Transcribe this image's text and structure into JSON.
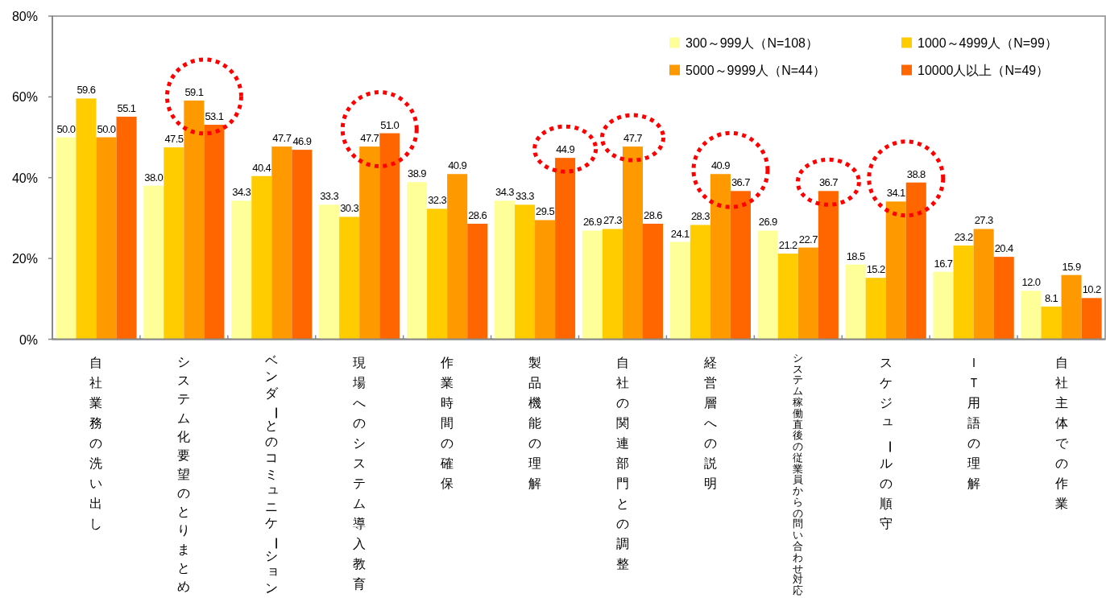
{
  "chart_data": {
    "type": "bar",
    "categories": [
      "自社業務の洗い出し",
      "システム化要望のとりまとめ",
      "ベンダーとのコミュニケーション",
      "現場へのシステム導入教育",
      "作業時間の確保",
      "製品機能の理解",
      "自社の関連部門との調整",
      "経営層への説明",
      "システム稼働直後の従業員からの問い合わせ対応",
      "スケジュールの順守",
      "ＩＴ用語の理解",
      "自社主体での作業"
    ],
    "series": [
      {
        "name": "300～999人（N=108）",
        "color": "#ffff99",
        "values": [
          50.0,
          38.0,
          34.3,
          33.3,
          38.9,
          34.3,
          26.9,
          24.1,
          26.9,
          18.5,
          16.7,
          12.0
        ],
        "value_labels": [
          "50.0",
          "38.0",
          "34.3",
          "33.3",
          "38.9",
          "34.3",
          "26.9",
          "24.1",
          "26.9",
          "18.5",
          "16.7",
          "12.0"
        ]
      },
      {
        "name": "1000～4999人（N=99）",
        "color": "#ffcc00",
        "values": [
          59.6,
          47.5,
          40.4,
          30.3,
          32.3,
          33.3,
          27.3,
          28.3,
          21.2,
          15.2,
          23.2,
          8.1
        ],
        "value_labels": [
          "59.6",
          "47.5",
          "40.4",
          "30.3",
          "32.3",
          "33.3",
          "27.3",
          "28.3",
          "21.2",
          "15.2",
          "23.2",
          "8.1"
        ]
      },
      {
        "name": "5000～9999人（N=44）",
        "color": "#ff9900",
        "values": [
          50.0,
          59.1,
          47.7,
          47.7,
          40.9,
          29.5,
          47.7,
          40.9,
          22.7,
          34.1,
          27.3,
          15.9
        ],
        "value_labels": [
          "50.0",
          "59.1",
          "47.7",
          "47.7",
          "40.9",
          "29.5",
          "47.7",
          "40.9",
          "22.7",
          "34.1",
          "27.3",
          "15.9"
        ]
      },
      {
        "name": "10000人以上（N=49）",
        "color": "#ff6600",
        "values": [
          55.1,
          53.1,
          46.9,
          51.0,
          28.6,
          44.9,
          28.6,
          36.7,
          36.7,
          38.8,
          20.4,
          10.2
        ],
        "value_labels": [
          "55.1",
          "53.1",
          "46.9",
          "51.0",
          "28.6",
          "44.9",
          "28.6",
          "36.7",
          "36.7",
          "38.8",
          "20.4",
          "10.2"
        ]
      }
    ],
    "ylim": [
      0,
      80
    ],
    "yticks": [
      {
        "value": 0,
        "label": "0%"
      },
      {
        "value": 20,
        "label": "20%"
      },
      {
        "value": 40,
        "label": "40%"
      },
      {
        "value": 60,
        "label": "60%"
      },
      {
        "value": 80,
        "label": "80%"
      }
    ],
    "legend": "top right"
  }
}
